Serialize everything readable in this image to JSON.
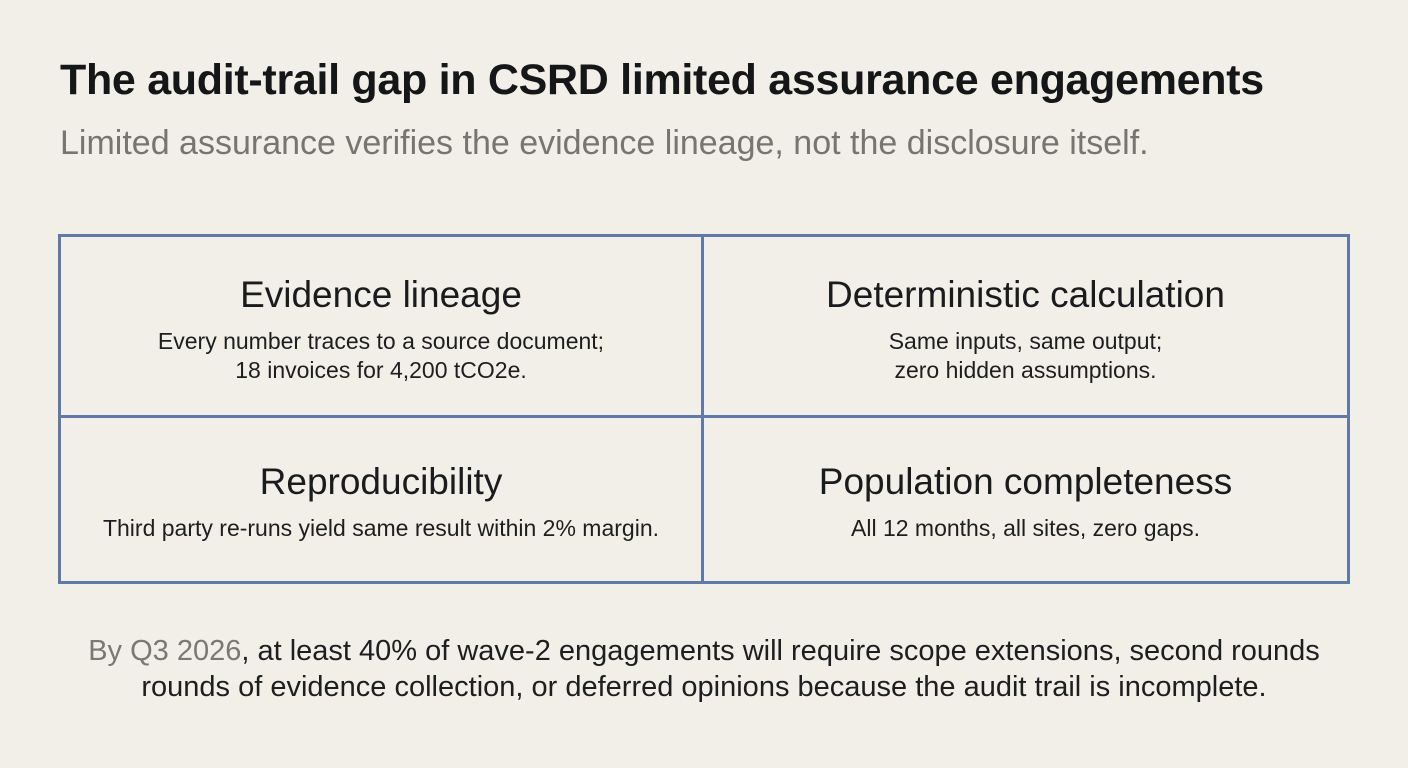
{
  "title": "The audit-trail gap in CSRD limited assurance engagements",
  "subtitle": "Limited assurance verifies the evidence lineage, not the disclosure itself.",
  "cells": [
    {
      "title": "Evidence lineage",
      "lines": [
        "Every number traces to a source document;",
        "18 invoices for 4,200 tCO2e."
      ]
    },
    {
      "title": "Deterministic calculation",
      "lines": [
        "Same inputs, same output;",
        "zero hidden assumptions."
      ]
    },
    {
      "title": "Reproducibility",
      "lines": [
        "Third party re-runs yield same result within 2% margin."
      ]
    },
    {
      "title": "Population completeness",
      "lines": [
        "All 12 months, all sites, zero gaps."
      ]
    }
  ],
  "footer": {
    "lead": "By Q3 2026",
    "line1_rest": ", at least 40% of wave-2 engagements will require scope extensions, second rounds",
    "line2": "rounds of evidence collection, or deferred opinions because the audit trail is incomplete."
  },
  "colors": {
    "background": "#f2efe8",
    "grid_border": "#5f79a8",
    "title": "#141618",
    "muted_text": "#777570"
  }
}
